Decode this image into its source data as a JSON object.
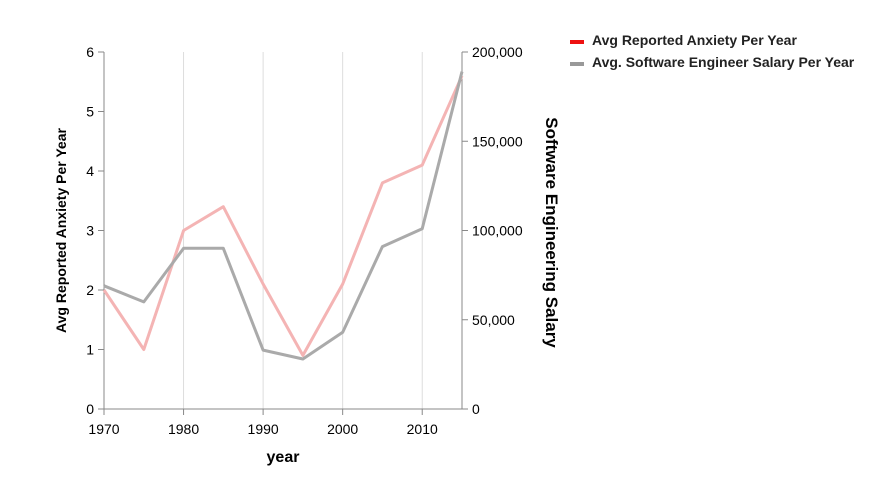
{
  "chart_data": {
    "type": "line",
    "x": [
      1970,
      1975,
      1980,
      1985,
      1990,
      1995,
      2000,
      2005,
      2010,
      2015
    ],
    "x_ticks": [
      1970,
      1980,
      1990,
      2000,
      2010
    ],
    "xlabel": "year",
    "xlim": [
      1970,
      2015
    ],
    "y_left": {
      "label": "Avg Reported Anxiety Per Year",
      "lim": [
        0,
        6
      ],
      "ticks": [
        0,
        1,
        2,
        3,
        4,
        5,
        6
      ],
      "tick_labels": [
        "0",
        "1",
        "2",
        "3",
        "4",
        "5",
        "6"
      ],
      "color": "#e8484d"
    },
    "y_right": {
      "label": "Software Engineering Salary",
      "lim": [
        0,
        200000
      ],
      "ticks": [
        0,
        50000,
        100000,
        150000,
        200000
      ],
      "tick_labels": [
        "0",
        "50,000",
        "100,000",
        "150,000",
        "200,000"
      ],
      "color": "#000000"
    },
    "series": [
      {
        "name": "Avg Reported Anxiety Per Year",
        "axis": "left",
        "color": "#f4b4b4",
        "legend_color": "#ee1111",
        "values": [
          2.0,
          1.0,
          3.0,
          3.4,
          2.1,
          0.9,
          2.1,
          3.8,
          4.1,
          5.6
        ]
      },
      {
        "name": "Avg. Software Engineer Salary Per Year",
        "axis": "right",
        "color": "#aaaaaa",
        "legend_color": "#999999",
        "values": [
          69000,
          60000,
          90000,
          90000,
          33000,
          28000,
          43000,
          91000,
          101000,
          189000
        ]
      }
    ],
    "grid": "vertical",
    "legend_position": "top-right"
  }
}
